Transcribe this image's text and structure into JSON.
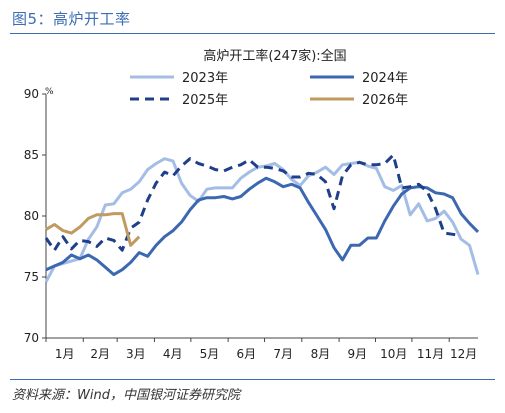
{
  "figure": {
    "title": "图5：高炉开工率",
    "source": "资料来源：Wind，中国银河证券研究院"
  },
  "chart_data": {
    "type": "line",
    "title": "高炉开工率(247家):全国",
    "ylabel": "%",
    "ylim": [
      70,
      90
    ],
    "yticks": [
      "90",
      "85",
      "80",
      "75",
      "70"
    ],
    "xticks": [
      "1月",
      "2月",
      "3月",
      "4月",
      "5月",
      "6月",
      "7月",
      "8月",
      "9月",
      "10月",
      "11月",
      "12月"
    ],
    "x_unit": "week of year",
    "grid": false,
    "legend_position": "top",
    "series": [
      {
        "name": "2023年",
        "color": "#a4bde6",
        "dash": "solid",
        "x": [
          1,
          2,
          3,
          4,
          5,
          6,
          7,
          8,
          9,
          10,
          11,
          12,
          13,
          14,
          15,
          16,
          17,
          18,
          19,
          20,
          21,
          22,
          23,
          24,
          25,
          26,
          27,
          28,
          29,
          30,
          31,
          32,
          33,
          34,
          35,
          36,
          37,
          38,
          39,
          40,
          41,
          42,
          43,
          44,
          45,
          46,
          47,
          48,
          49,
          50,
          51,
          52
        ],
        "values": [
          74.6,
          75.9,
          76.1,
          76.3,
          76.5,
          78.1,
          79.1,
          80.9,
          81.0,
          81.9,
          82.2,
          82.8,
          83.8,
          84.3,
          84.7,
          84.5,
          82.7,
          81.7,
          81.2,
          82.2,
          82.3,
          82.3,
          82.3,
          83.1,
          83.6,
          84.0,
          84.1,
          84.3,
          83.8,
          83.0,
          82.5,
          83.3,
          83.6,
          84.0,
          83.4,
          84.2,
          84.3,
          84.4,
          84.1,
          83.9,
          82.4,
          82.1,
          82.5,
          80.1,
          81.0,
          79.6,
          79.8,
          80.4,
          79.5,
          78.1,
          77.6,
          75.2
        ]
      },
      {
        "name": "2024年",
        "color": "#3b68b0",
        "dash": "solid",
        "x": [
          1,
          2,
          3,
          4,
          5,
          6,
          7,
          8,
          9,
          10,
          11,
          12,
          13,
          14,
          15,
          16,
          17,
          18,
          19,
          20,
          21,
          22,
          23,
          24,
          25,
          26,
          27,
          28,
          29,
          30,
          31,
          32,
          33,
          34,
          35,
          36,
          37,
          38,
          39,
          40,
          41,
          42,
          43,
          44,
          45,
          46,
          47,
          48,
          49,
          50,
          51,
          52
        ],
        "values": [
          75.6,
          75.9,
          76.2,
          76.8,
          76.5,
          76.8,
          76.4,
          75.8,
          75.2,
          75.6,
          76.2,
          77.0,
          76.7,
          77.6,
          78.3,
          78.8,
          79.5,
          80.5,
          81.3,
          81.5,
          81.5,
          81.6,
          81.4,
          81.6,
          82.2,
          82.7,
          83.1,
          82.8,
          82.4,
          82.6,
          82.3,
          81.1,
          80.0,
          78.9,
          77.4,
          76.4,
          77.6,
          77.6,
          78.2,
          78.2,
          79.6,
          80.8,
          81.8,
          82.3,
          82.4,
          82.3,
          81.9,
          81.8,
          81.5,
          80.2,
          79.4,
          78.7
        ]
      },
      {
        "name": "2025年",
        "color": "#1f3f8a",
        "dash": "dashed",
        "x": [
          1,
          2,
          3,
          4,
          5,
          6,
          7,
          8,
          9,
          10,
          11,
          12,
          13,
          14,
          15,
          16,
          17,
          18,
          19,
          20,
          21,
          22,
          23,
          24,
          25,
          26,
          27,
          28,
          29,
          30,
          31,
          32,
          33,
          34,
          35,
          36,
          37,
          38,
          39,
          40,
          41,
          42,
          43,
          44,
          45,
          46,
          47,
          48,
          49,
          50
        ],
        "values": [
          78.2,
          77.2,
          78.3,
          77.3,
          78.0,
          77.9,
          77.5,
          78.2,
          78.0,
          77.2,
          79.0,
          79.5,
          81.3,
          82.7,
          83.6,
          83.3,
          84.1,
          84.7,
          84.3,
          84.1,
          83.8,
          83.7,
          84.0,
          84.2,
          84.6,
          84.0,
          84.0,
          83.9,
          83.7,
          83.2,
          83.2,
          83.5,
          83.4,
          82.8,
          80.6,
          83.3,
          84.2,
          84.4,
          84.2,
          84.2,
          84.3,
          85.0,
          82.3,
          82.4,
          82.6,
          82.0,
          80.6,
          78.6,
          78.5,
          78.4
        ]
      },
      {
        "name": "2026年",
        "color": "#c09a5f",
        "dash": "solid",
        "x": [
          1,
          2,
          3,
          4,
          5,
          6,
          7,
          8,
          9,
          10,
          11,
          12
        ],
        "values": [
          78.9,
          79.3,
          78.8,
          78.6,
          79.1,
          79.8,
          80.1,
          80.1,
          80.2,
          80.2,
          77.6,
          78.3
        ]
      }
    ]
  }
}
